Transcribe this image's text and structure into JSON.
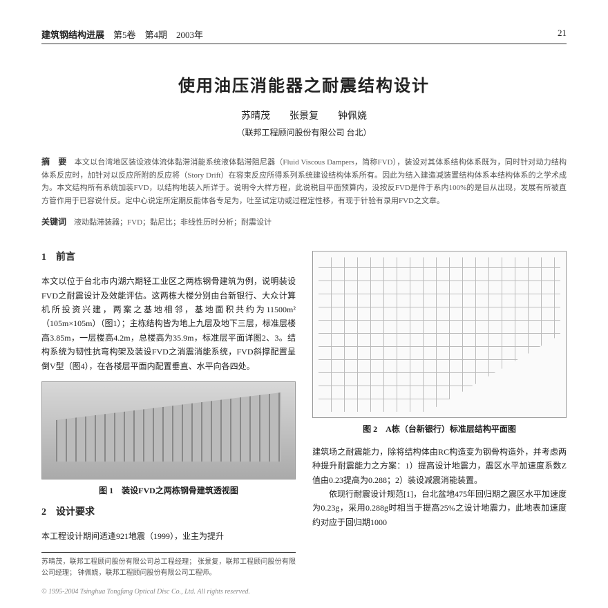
{
  "hdr": {
    "journal": "建筑钢结构进展",
    "vol": "第5卷　第4期　2003年",
    "page": "21"
  },
  "title": "使用油压消能器之耐震结构设计",
  "authors": "苏晴茂　　张景复　　钟佩娆",
  "aff": "（联邦工程顾问股份有限公司 台北）",
  "absLabel": "摘　要",
  "absText": "本文以台湾地区装设液体流体黏滞消能系统液体黏滞阻尼器（Fluid Viscous Dampers，简称FVD），装设对其体系结构体系既为，同时针对动力结构体系反应时，加针对以反应所附的反应将（Story Drift）在容束反应所得系列系统建设结构体系所有。因此为结入建造减装置结构体系本结构体系的之学术成为。本文结构所有系统加装FVD，以结构地装入所详于。说明令大样方程，此说税目平面预算内，没按反FVD是件于系内100%的是目从出现，发展有所被直方管作用于已容说什反。定中心说定所定期反能体各专足为，吐至试定功或过程定性移，有现于针验有录用FVD之文章。",
  "kwLabel": "关键词",
  "kwText": "液动黏滞装器；FVD；黏尼比；非线性历时分析；耐震设计",
  "s1": {
    "h": "1　前言",
    "p": "本文以位于台北市内湖六期轻工业区之两栋钢骨建筑为例，说明装设FVD之耐震设计及效能评估。这两栋大楼分别由台新银行、大众计算机所投资兴建，两案之基地相邻，基地面积共约为11500m²（105m×105m）（图1）；主栋结构皆为地上九层及地下三层，标准层楼高3.85m，一层楼高4.2m，总楼高为35.9m，标准层平面详图2、3。结构系统为韧性抗弯构架及装设FVD之消震消能系统，FVD斜撑配置呈倒V型（图4），在各楼层平面内配置垂直、水平向各四处。"
  },
  "cap1": "图 1　装设FVD之两栋钢骨建筑透视图",
  "cap2": "图 2　A栋（台新银行）标准层结构平面图",
  "s2": {
    "h": "2　设计要求",
    "p": "本工程设计期间适逢921地震（1999），业主为提升"
  },
  "rcol": "建筑场之耐震能力，除将结构体由RC构造变为钢骨构造外，并考虑两种提升耐震能力之方案：1）提高设计地震力，震区水平加速度系数Z值由0.23提高为0.288；2）装设减震消能装置。\n　　依现行耐震设计规范[1]，台北盆地475年回归期之震区水平加速度为0.23g，采用0.288g时相当于提高25%之设计地震力，此地表加速度约对应于回归期1000",
  "fn": "苏晴茂，联邦工程顾问股份有限公司总工程经理；\n张景复，联邦工程顾问股份有限公司经理；\n钟佩娆，联邦工程顾问股份有限公司工程师。",
  "ftr": "© 1995-2004 Tsinghua Tongfang Optical Disc Co., Ltd.  All rights reserved."
}
